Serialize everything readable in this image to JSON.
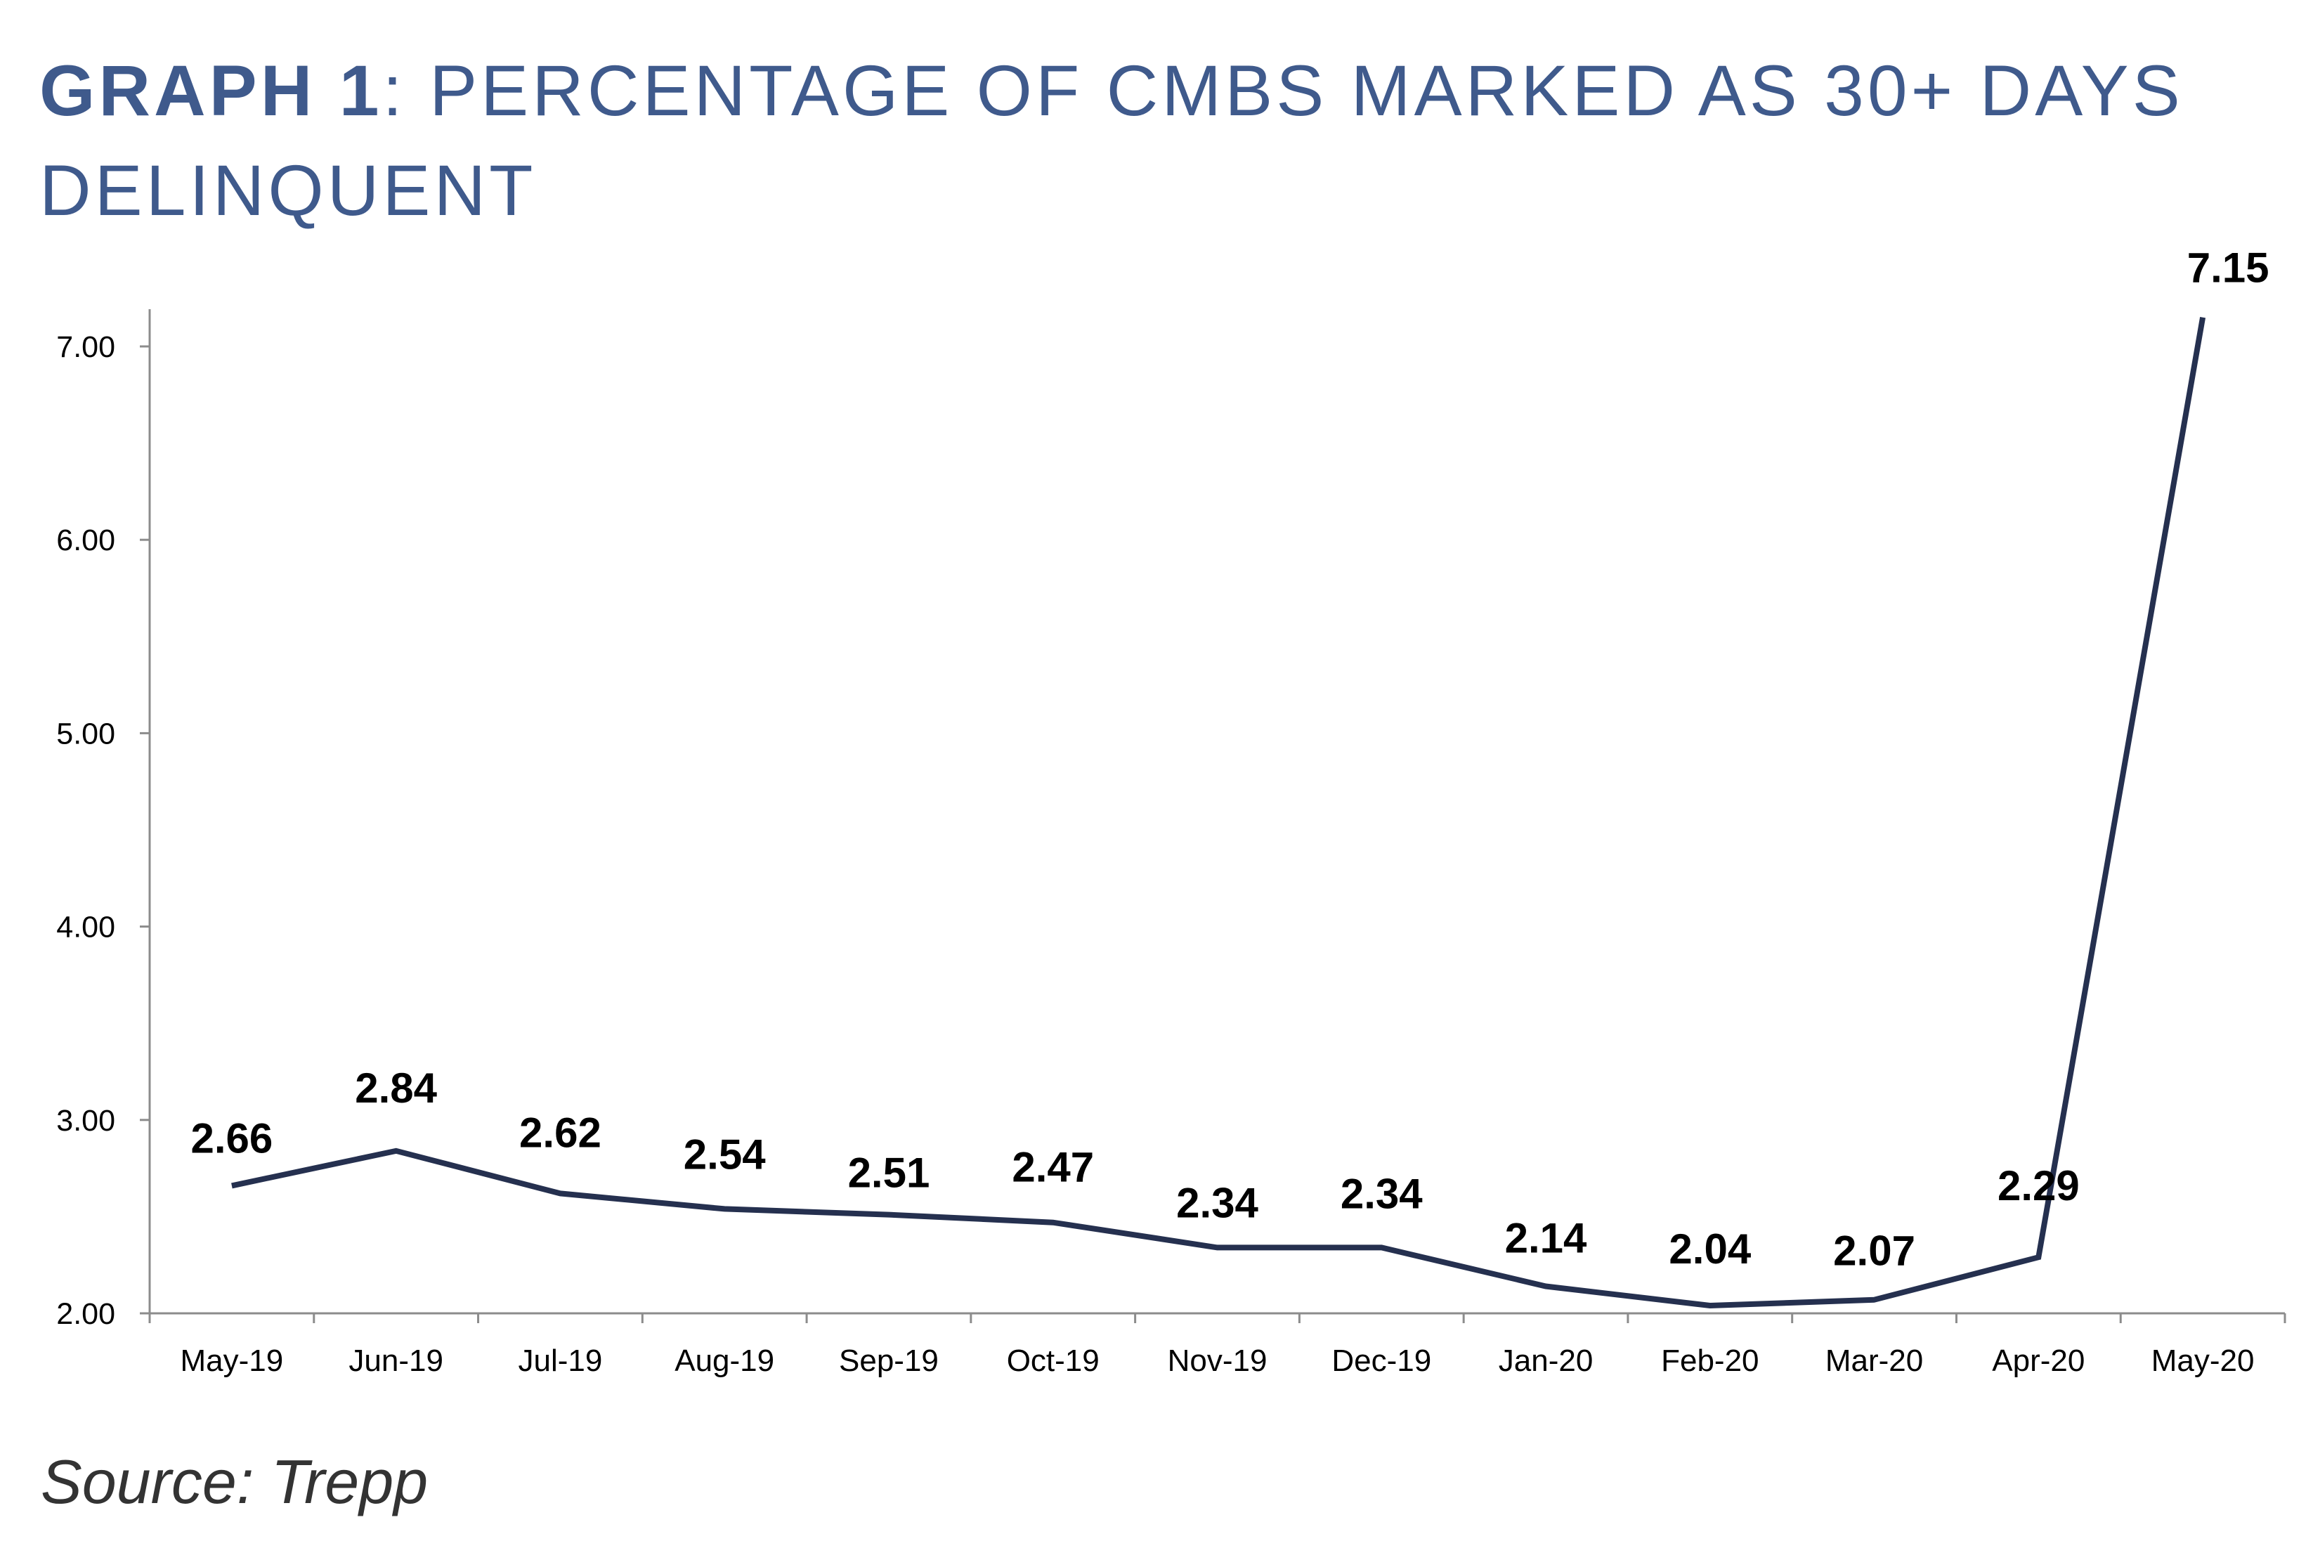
{
  "title": {
    "bold": "GRAPH 1",
    "rest": ": PERCENTAGE OF CMBS MARKED AS 30+ DAYS DELINQUENT"
  },
  "source": "Source: Trepp",
  "colors": {
    "title": "#3f5a8c",
    "line": "#25304f",
    "axis": "#8c8c8c",
    "text": "#000000"
  },
  "chart_data": {
    "type": "line",
    "title": "GRAPH 1: PERCENTAGE OF CMBS MARKED AS 30+ DAYS DELINQUENT",
    "xlabel": "",
    "ylabel": "",
    "categories": [
      "May-19",
      "Jun-19",
      "Jul-19",
      "Aug-19",
      "Sep-19",
      "Oct-19",
      "Nov-19",
      "Dec-19",
      "Jan-20",
      "Feb-20",
      "Mar-20",
      "Apr-20",
      "May-20"
    ],
    "values": [
      2.66,
      2.84,
      2.62,
      2.54,
      2.51,
      2.47,
      2.34,
      2.34,
      2.14,
      2.04,
      2.07,
      2.29,
      7.15
    ],
    "data_labels": [
      "2.66",
      "2.84",
      "2.62",
      "2.54",
      "2.51",
      "2.47",
      "2.34",
      "2.34",
      "2.14",
      "2.04",
      "2.07",
      "2.29",
      "7.15"
    ],
    "ylim": [
      2.0,
      7.0
    ],
    "yticks": [
      "2.00",
      "3.00",
      "4.00",
      "5.00",
      "6.00",
      "7.00"
    ],
    "grid": false,
    "legend": "none"
  }
}
